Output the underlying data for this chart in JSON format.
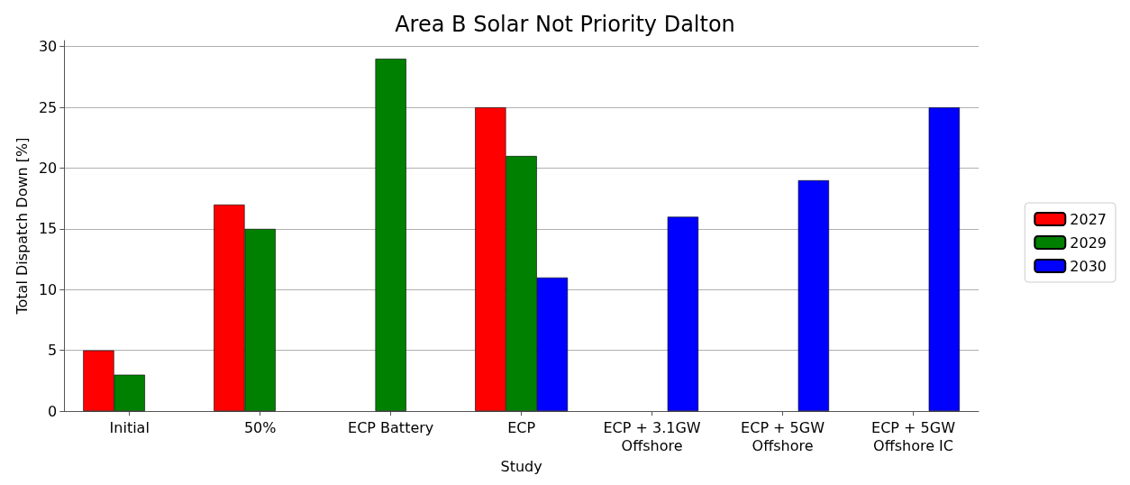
{
  "chart_data": {
    "type": "bar",
    "title": "Area B Solar Not Priority Dalton",
    "xlabel": "Study",
    "ylabel": "Total Dispatch Down [%]",
    "categories": [
      "Initial",
      "50%",
      "ECP Battery",
      "ECP",
      "ECP + 3.1GW\nOffshore",
      "ECP + 5GW\nOffshore",
      "ECP + 5GW\nOffshore IC"
    ],
    "series": [
      {
        "name": "2027",
        "color": "#ff0000",
        "values": [
          5,
          17,
          null,
          25,
          null,
          null,
          null
        ]
      },
      {
        "name": "2029",
        "color": "#008000",
        "values": [
          3,
          15,
          29,
          21,
          null,
          null,
          null
        ]
      },
      {
        "name": "2030",
        "color": "#0000ff",
        "values": [
          null,
          null,
          null,
          11,
          16,
          19,
          25
        ]
      }
    ],
    "ylim": [
      0,
      30.5
    ],
    "yticks": [
      0,
      5,
      10,
      15,
      20,
      25,
      30
    ],
    "grid": "y",
    "legend": "right"
  }
}
